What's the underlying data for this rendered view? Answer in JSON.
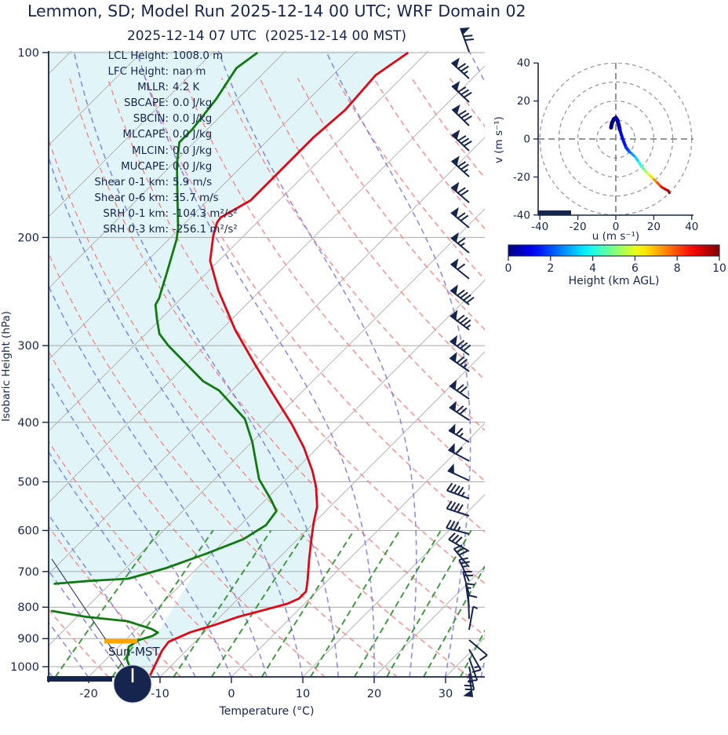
{
  "header": {
    "title": "Lemmon, SD; Model Run 2025-12-14 00 UTC; WRF Domain 02",
    "subtitle": "2025-12-14 07 UTC  (2025-12-14 00 MST)"
  },
  "skewt": {
    "xlabel": "Temperature (°C)",
    "ylabel": "Isobaric Height (hPa)",
    "x_ticks": [
      -20,
      -10,
      0,
      10,
      20,
      30
    ],
    "y_ticks": [
      100,
      200,
      300,
      400,
      500,
      600,
      700,
      800,
      900,
      1000
    ],
    "sun_label": "Sun-MST",
    "stats": [
      {
        "label": "LCL Height:",
        "value": "1008.0 m"
      },
      {
        "label": "LFC Height:",
        "value": "nan m"
      },
      {
        "label": "MLLR:",
        "value": "4.2 K"
      },
      {
        "label": "SBCAPE:",
        "value": "0.0 J/kg"
      },
      {
        "label": "SBCIN:",
        "value": "0.0 J/kg"
      },
      {
        "label": "MLCAPE:",
        "value": "0.0 J/kg"
      },
      {
        "label": "MLCIN:",
        "value": "0.0 J/kg"
      },
      {
        "label": "MUCAPE:",
        "value": "0.0 J/kg"
      },
      {
        "label": "Shear 0-1 km:",
        "value": "5.9 m/s"
      },
      {
        "label": "Shear 0-6 km:",
        "value": "35.7 m/s"
      },
      {
        "label": "SRH 0-1 km:",
        "value": "-104.3 m²/s²"
      },
      {
        "label": "SRH 0-3 km:",
        "value": "-256.1 m²/s²"
      }
    ]
  },
  "hodograph": {
    "xlabel": "u (m s⁻¹)",
    "ylabel": "v (m s⁻¹)",
    "x_ticks": [
      -40,
      -20,
      0,
      20,
      40
    ],
    "y_ticks": [
      -40,
      -20,
      0,
      20,
      40
    ],
    "ring_radii": [
      10,
      20,
      30,
      40
    ]
  },
  "colorbar": {
    "label": "Height (km AGL)",
    "ticks": [
      0,
      2,
      4,
      6,
      8,
      10
    ],
    "range": [
      0,
      10
    ]
  },
  "colors": {
    "navy": "#16254e",
    "temp": "#e30613",
    "dewpoint": "#107a10",
    "fill": "#e1f4f7",
    "isotherm": "#b8b8b8",
    "grid": "#a8a8a8",
    "dry_adiabat": "#f48484",
    "moist_adiabat": "#7879de",
    "mixing_ratio": "#2f8f2f",
    "sun_bar": "#ffa500"
  },
  "chart_data": {
    "type": "line",
    "title": "Skew-T log-p sounding with hodograph",
    "skewt_axes": {
      "temp_range_C": [
        -25.6,
        35.5
      ],
      "pressure_range_hPa": [
        100,
        1039
      ],
      "skew_deg": 45
    },
    "temperature_profile": {
      "pressure_hPa": [
        100,
        108.8,
        124,
        137.5,
        154.7,
        174,
        185.6,
        189,
        198.6,
        218.3,
        244,
        283,
        322.6,
        357.8,
        402.8,
        440,
        480.7,
        510,
        549,
        582,
        625,
        672,
        722,
        754,
        775,
        790,
        807,
        829,
        855,
        879,
        911,
        941,
        1039
      ],
      "temp_C": [
        -62.6,
        -64,
        -63.4,
        -64,
        -64,
        -64,
        -65.8,
        -65.6,
        -64.3,
        -61.2,
        -55.9,
        -48,
        -40.3,
        -34.1,
        -26.9,
        -21.9,
        -17.4,
        -14.7,
        -11.8,
        -10.1,
        -7.8,
        -5.4,
        -2.9,
        -1.5,
        -1.5,
        -2.4,
        -4.6,
        -7.4,
        -9.6,
        -12,
        -13.7,
        -13.4,
        -11.5
      ]
    },
    "dewpoint_segments": [
      {
        "pressure_hPa": [
          100,
          106,
          119,
          133.5,
          140,
          152.3,
          193,
          201.5,
          228.3,
          251.4,
          257.5,
          272.3,
          287,
          300,
          343,
          355,
          395,
          431,
          495,
          537,
          558,
          588,
          620,
          655,
          691,
          719,
          725,
          733
        ],
        "temp_C": [
          -83.7,
          -84.5,
          -83,
          -82.1,
          -82.1,
          -79.3,
          -70.3,
          -68.9,
          -65.6,
          -63.1,
          -62.7,
          -60.4,
          -58.1,
          -55.2,
          -45.3,
          -41.8,
          -34.2,
          -29.9,
          -23.8,
          -19,
          -16.9,
          -16.4,
          -17.6,
          -20.8,
          -24.4,
          -28.2,
          -33.4,
          -37.9
        ]
      },
      {
        "pressure_hPa": [
          811,
          830,
          843,
          868,
          880,
          891,
          905,
          928,
          973,
          1039
        ],
        "temp_C": [
          -34.5,
          -28.6,
          -22.4,
          -17.9,
          -16.5,
          -16.8,
          -18.1,
          -18.6,
          -17.1,
          -13.7
        ]
      }
    ],
    "hodograph_trace": {
      "u_ms": [
        -2.5,
        -2,
        -1,
        0,
        0.8,
        1.5,
        2.1,
        3,
        4,
        5.4,
        7,
        8.5,
        10.3,
        12,
        13.6,
        15,
        16.5,
        18.6,
        20.2,
        21.9,
        24,
        25.8,
        27.7,
        28.2
      ],
      "v_ms": [
        6,
        8.5,
        10.5,
        11.2,
        10,
        7.5,
        5,
        2,
        -1,
        -4.5,
        -6.5,
        -7.8,
        -9.5,
        -12,
        -14.5,
        -16.2,
        -17.8,
        -19.8,
        -21.4,
        -23.1,
        -25.2,
        -26.3,
        -27.3,
        -28.3
      ],
      "height_frac": [
        0,
        0.005,
        0.01,
        0.02,
        0.03,
        0.05,
        0.07,
        0.09,
        0.12,
        0.16,
        0.2,
        0.25,
        0.3,
        0.36,
        0.42,
        0.48,
        0.55,
        0.62,
        0.7,
        0.77,
        0.84,
        0.9,
        0.96,
        1
      ]
    },
    "reference_lines": {
      "isotherms_C_step": 10,
      "dry_adiabats_theta_C": [
        -30,
        150,
        10
      ],
      "moist_adiabats_start_C": [
        -35,
        40,
        5
      ],
      "mixing_ratio_g_kg": [
        0.5,
        1,
        2,
        3,
        5,
        8,
        12,
        16,
        22,
        30
      ]
    },
    "wind_barbs_right_column": [
      {
        "y": 66,
        "from_deg": 340,
        "flags": 1,
        "full": 2,
        "half": 0
      },
      {
        "y": 100,
        "from_deg": 312,
        "flags": 1,
        "full": 2,
        "half": 1
      },
      {
        "y": 130,
        "from_deg": 313,
        "flags": 1,
        "full": 3,
        "half": 0
      },
      {
        "y": 160,
        "from_deg": 314,
        "flags": 1,
        "full": 3,
        "half": 0
      },
      {
        "y": 192,
        "from_deg": 313,
        "flags": 1,
        "full": 3,
        "half": 0
      },
      {
        "y": 225,
        "from_deg": 312,
        "flags": 1,
        "full": 2,
        "half": 1
      },
      {
        "y": 258,
        "from_deg": 311,
        "flags": 1,
        "full": 2,
        "half": 0
      },
      {
        "y": 290,
        "from_deg": 310,
        "flags": 1,
        "full": 2,
        "half": 0
      },
      {
        "y": 322,
        "from_deg": 310,
        "flags": 1,
        "full": 1,
        "half": 1
      },
      {
        "y": 355,
        "from_deg": 309,
        "flags": 1,
        "full": 1,
        "half": 0
      },
      {
        "y": 388,
        "from_deg": 308,
        "flags": 1,
        "full": 4,
        "half": 0
      },
      {
        "y": 420,
        "from_deg": 307,
        "flags": 1,
        "full": 3,
        "half": 1
      },
      {
        "y": 452,
        "from_deg": 306,
        "flags": 1,
        "full": 3,
        "half": 0
      },
      {
        "y": 473,
        "from_deg": 305,
        "flags": 1,
        "full": 2,
        "half": 1
      },
      {
        "y": 508,
        "from_deg": 304,
        "flags": 1,
        "full": 2,
        "half": 0
      },
      {
        "y": 535,
        "from_deg": 303,
        "flags": 1,
        "full": 2,
        "half": 0
      },
      {
        "y": 563,
        "from_deg": 300,
        "flags": 1,
        "full": 1,
        "half": 1
      },
      {
        "y": 587,
        "from_deg": 298,
        "flags": 1,
        "full": 1,
        "half": 0
      },
      {
        "y": 612,
        "from_deg": 295,
        "flags": 1,
        "full": 0,
        "half": 0
      },
      {
        "y": 635,
        "from_deg": 290,
        "flags": 0,
        "full": 4,
        "half": 1
      },
      {
        "y": 657,
        "from_deg": 288,
        "flags": 0,
        "full": 4,
        "half": 0
      },
      {
        "y": 680,
        "from_deg": 285,
        "flags": 0,
        "full": 3,
        "half": 1
      },
      {
        "y": 702,
        "from_deg": 300,
        "flags": 0,
        "full": 3,
        "half": 0
      },
      {
        "y": 722,
        "from_deg": 320,
        "flags": 0,
        "full": 3,
        "half": 0
      },
      {
        "y": 740,
        "from_deg": 335,
        "flags": 0,
        "full": 2,
        "half": 1
      },
      {
        "y": 757,
        "from_deg": 345,
        "flags": 0,
        "full": 2,
        "half": 0
      },
      {
        "y": 773,
        "from_deg": 352,
        "flags": 0,
        "full": 1,
        "half": 1
      },
      {
        "y": 788,
        "from_deg": 358,
        "flags": 0,
        "full": 1,
        "half": 0
      },
      {
        "y": 802,
        "from_deg": 10,
        "flags": 0,
        "full": 0,
        "half": 1
      },
      {
        "y": 815,
        "from_deg": 130,
        "flags": 0,
        "full": 1,
        "half": 0
      },
      {
        "y": 827,
        "from_deg": 150,
        "flags": 0,
        "full": 1,
        "half": 1
      },
      {
        "y": 838,
        "from_deg": 160,
        "flags": 0,
        "full": 2,
        "half": 0
      },
      {
        "y": 849,
        "from_deg": 168,
        "flags": 0,
        "full": 2,
        "half": 1
      },
      {
        "y": 858,
        "from_deg": 172,
        "flags": 1,
        "full": 0,
        "half": 0
      }
    ]
  }
}
